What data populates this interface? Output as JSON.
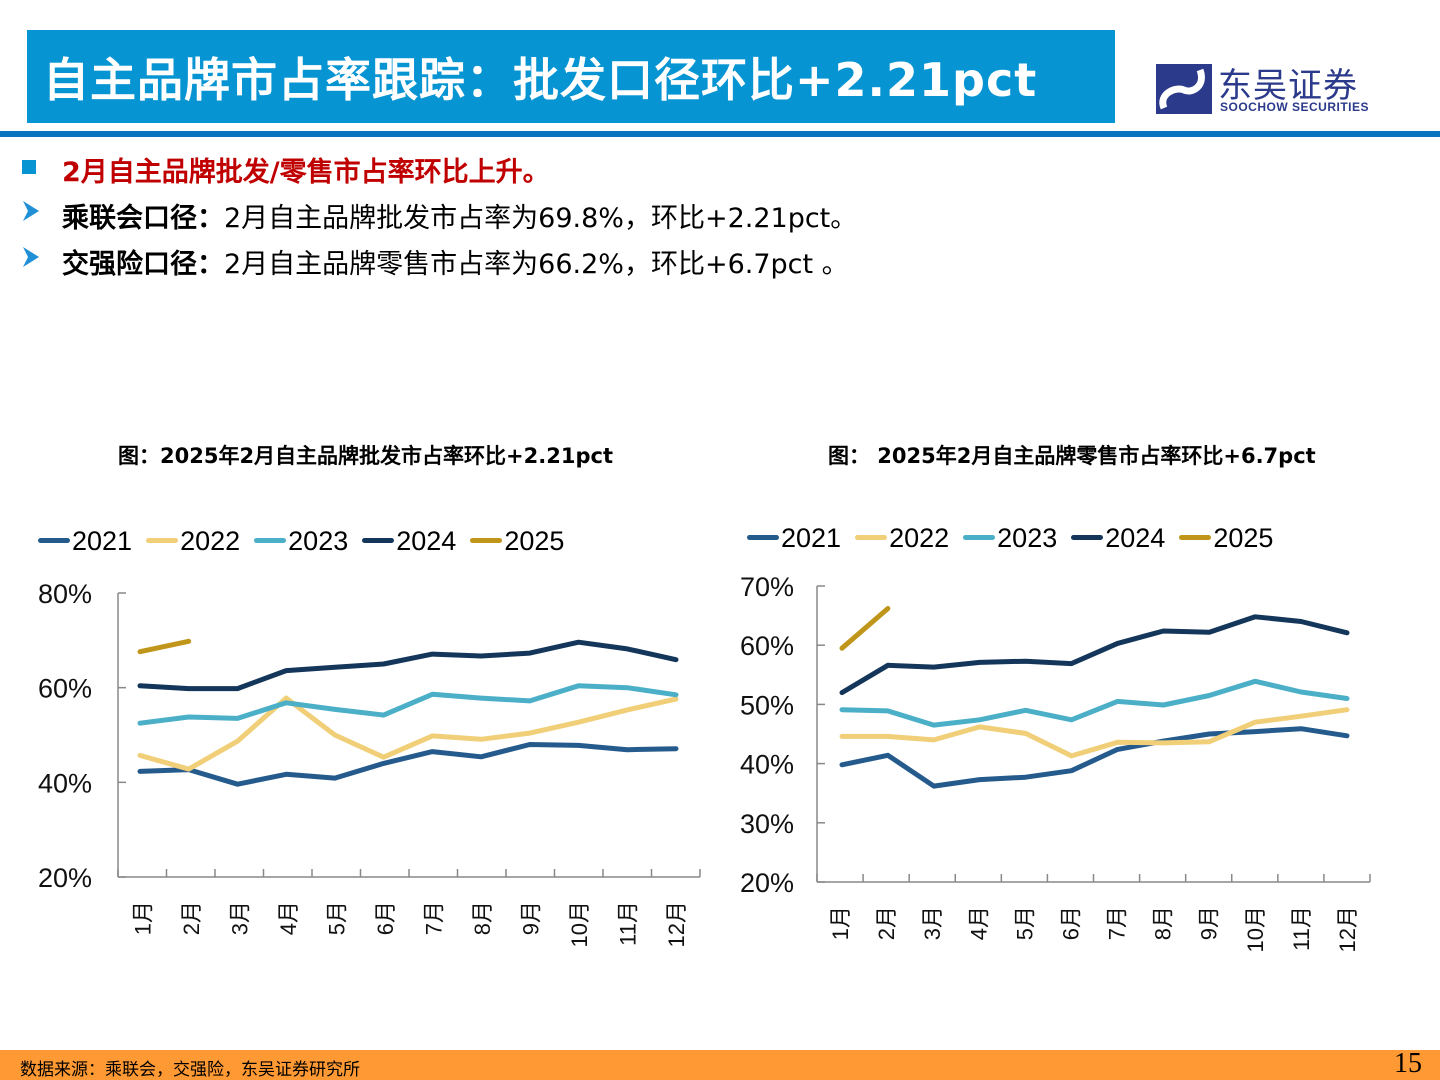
{
  "header": {
    "title": "自主品牌市占率跟踪：批发口径环比+2.21pct",
    "logo_cn": "东吴证券",
    "logo_en": "SOOCHOW SECURITIES",
    "colors": {
      "title_bg": "#0794d2",
      "rule": "#0b74c1",
      "logo": "#2b3a8a"
    }
  },
  "bullets": {
    "main": "2月自主品牌批发/零售市占率环比上升。",
    "items": [
      {
        "label": "乘联会口径：",
        "body": "2月自主品牌批发市占率为69.8%，环比+2.21pct。"
      },
      {
        "label": "交强险口径：",
        "body": "2月自主品牌零售市占率为66.2%，环比+6.7pct 。"
      }
    ]
  },
  "chart_data": [
    {
      "type": "line",
      "title": "图：2025年2月自主品牌批发市占率环比+2.21pct",
      "xlabel": "",
      "ylabel": "",
      "categories": [
        "1月",
        "2月",
        "3月",
        "4月",
        "5月",
        "6月",
        "7月",
        "8月",
        "9月",
        "10月",
        "11月",
        "12月"
      ],
      "ylim": [
        20,
        80
      ],
      "yticks": [
        20,
        40,
        60,
        80
      ],
      "ytick_labels": [
        "20%",
        "40%",
        "60%",
        "80%"
      ],
      "grid": false,
      "legend_position": "top",
      "series": [
        {
          "name": "2021",
          "color": "#255a8c",
          "values": [
            42.3,
            42.7,
            39.6,
            41.7,
            40.9,
            44.0,
            46.5,
            45.4,
            48.0,
            47.8,
            46.9,
            47.1
          ]
        },
        {
          "name": "2022",
          "color": "#f0cf78",
          "values": [
            45.7,
            42.8,
            48.7,
            57.8,
            50.0,
            45.3,
            49.8,
            49.1,
            50.4,
            52.7,
            55.3,
            57.6
          ]
        },
        {
          "name": "2023",
          "color": "#4bafc8",
          "values": [
            52.5,
            53.8,
            53.5,
            56.8,
            55.4,
            54.2,
            58.6,
            57.8,
            57.2,
            60.4,
            60.0,
            58.5
          ]
        },
        {
          "name": "2024",
          "color": "#14365a",
          "values": [
            60.4,
            59.8,
            59.8,
            63.6,
            64.3,
            65.0,
            67.1,
            66.7,
            67.3,
            69.6,
            68.2,
            65.9
          ]
        },
        {
          "name": "2025",
          "color": "#c0961a",
          "values": [
            67.6,
            69.8
          ]
        }
      ]
    },
    {
      "type": "line",
      "title": "图： 2025年2月自主品牌零售市占率环比+6.7pct",
      "xlabel": "",
      "ylabel": "",
      "categories": [
        "1月",
        "2月",
        "3月",
        "4月",
        "5月",
        "6月",
        "7月",
        "8月",
        "9月",
        "10月",
        "11月",
        "12月"
      ],
      "ylim": [
        20,
        70
      ],
      "yticks": [
        20,
        30,
        40,
        50,
        60,
        70
      ],
      "ytick_labels": [
        "20%",
        "30%",
        "40%",
        "50%",
        "60%",
        "70%"
      ],
      "grid": false,
      "legend_position": "top",
      "series": [
        {
          "name": "2021",
          "color": "#255a8c",
          "values": [
            39.8,
            41.4,
            36.2,
            37.3,
            37.7,
            38.8,
            42.4,
            43.8,
            45.0,
            45.4,
            45.9,
            44.7
          ]
        },
        {
          "name": "2022",
          "color": "#f0cf78",
          "values": [
            44.6,
            44.6,
            44.0,
            46.2,
            45.1,
            41.3,
            43.6,
            43.5,
            43.7,
            47.0,
            48.0,
            49.1
          ]
        },
        {
          "name": "2023",
          "color": "#4bafc8",
          "values": [
            49.1,
            48.9,
            46.5,
            47.4,
            49.0,
            47.4,
            50.5,
            49.9,
            51.5,
            53.9,
            52.1,
            51.0
          ]
        },
        {
          "name": "2024",
          "color": "#14365a",
          "values": [
            52.0,
            56.6,
            56.3,
            57.1,
            57.3,
            56.9,
            60.3,
            62.4,
            62.2,
            64.8,
            64.0,
            62.1
          ]
        },
        {
          "name": "2025",
          "color": "#c0961a",
          "values": [
            59.5,
            66.2
          ]
        }
      ]
    }
  ],
  "footer": {
    "source": "数据来源：乘联会，交强险，东吴证券研究所",
    "page": "15",
    "color": "#ff9933"
  }
}
